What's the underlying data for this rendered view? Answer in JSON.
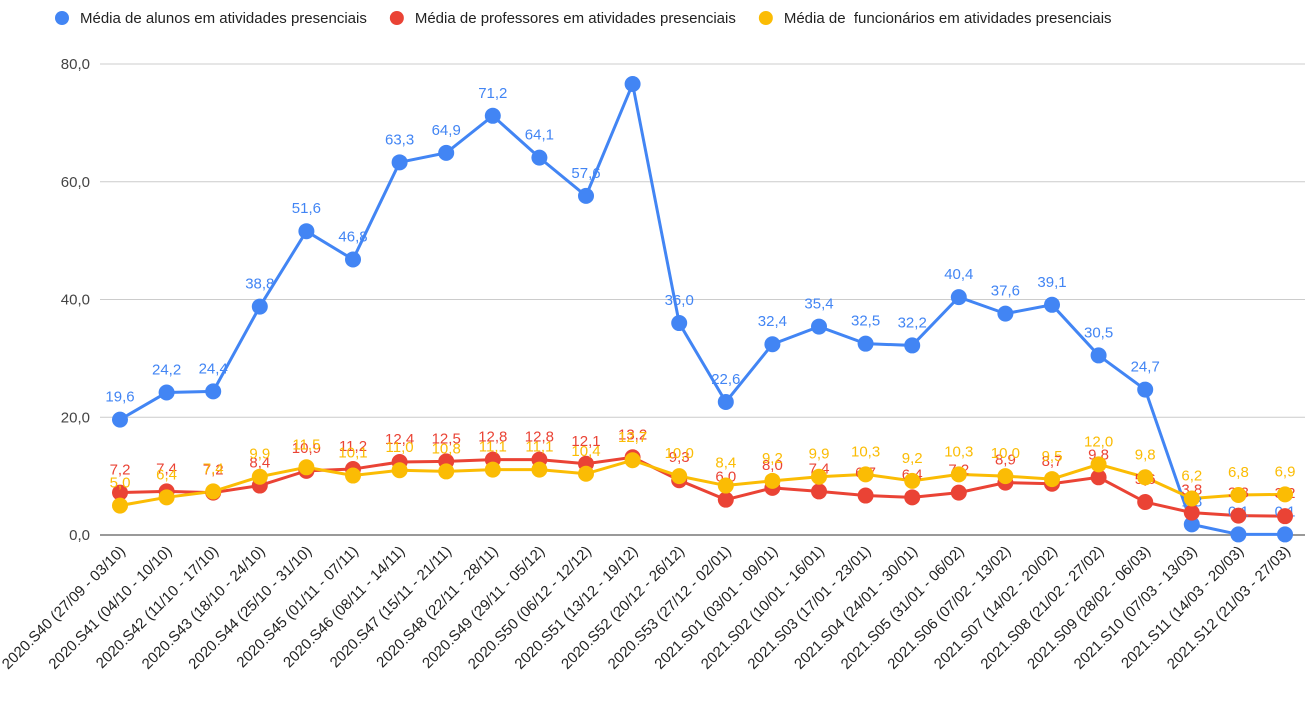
{
  "chart_data": {
    "type": "line",
    "categories": [
      "2020.S40 (27/09 - 03/10)",
      "2020.S41 (04/10 - 10/10)",
      "2020.S42 (11/10 - 17/10)",
      "2020.S43 (18/10 - 24/10)",
      "2020.S44 (25/10 - 31/10)",
      "2020.S45 (01/11 - 07/11)",
      "2020.S46 (08/11 - 14/11)",
      "2020.S47 (15/11 - 21/11)",
      "2020.S48 (22/11 - 28/11)",
      "2020.S49 (29/11 - 05/12)",
      "2020.S50 (06/12 - 12/12)",
      "2020.S51 (13/12 - 19/12)",
      "2020.S52 (20/12 - 26/12)",
      "2020.S53 (27/12 - 02/01)",
      "2021.S01 (03/01 - 09/01)",
      "2021.S02 (10/01 - 16/01)",
      "2021.S03 (17/01 - 23/01)",
      "2021.S04 (24/01 - 30/01)",
      "2021.S05 (31/01 - 06/02)",
      "2021.S06 (07/02 - 13/02)",
      "2021.S07 (14/02 - 20/02)",
      "2021.S08 (21/02 - 27/02)",
      "2021.S09 (28/02 - 06/03)",
      "2021.S10 (07/03 - 13/03)",
      "2021.S11 (14/03 - 20/03)",
      "2021.S12 (21/03 - 27/03)"
    ],
    "series": [
      {
        "name": "Média de alunos em atividades presenciais",
        "color": "#4285f4",
        "values": [
          19.6,
          24.2,
          24.4,
          38.8,
          51.6,
          46.8,
          63.3,
          64.9,
          71.2,
          64.1,
          57.6,
          76.6,
          36.0,
          22.6,
          32.4,
          35.4,
          32.5,
          32.2,
          40.4,
          37.6,
          39.1,
          30.5,
          24.7,
          1.8,
          0.1,
          0.1
        ],
        "value_labels": [
          "19,6",
          "24,2",
          "24,4",
          "38,8",
          "51,6",
          "46,8",
          "63,3",
          "64,9",
          "71,2",
          "64,1",
          "57,6",
          null,
          "36,0",
          "22,6",
          "32,4",
          "35,4",
          "32,5",
          "32,2",
          "40,4",
          "37,6",
          "39,1",
          "30,5",
          "24,7",
          "1,8",
          "0,1",
          "0,1"
        ]
      },
      {
        "name": "Média de professores em atividades presenciais",
        "color": "#ea4335",
        "values": [
          7.2,
          7.4,
          7.2,
          8.4,
          10.9,
          11.2,
          12.4,
          12.5,
          12.8,
          12.8,
          12.1,
          13.2,
          9.3,
          6.0,
          8.0,
          7.4,
          6.7,
          6.4,
          7.2,
          8.9,
          8.7,
          9.8,
          5.6,
          3.8,
          3.3,
          3.2
        ],
        "value_labels": [
          "7,2",
          "7,4",
          "7,2",
          "8,4",
          "10,9",
          "11,2",
          "12,4",
          "12,5",
          "12,8",
          "12,8",
          "12,1",
          "13,2",
          "9,3",
          "6,0",
          "8,0",
          "7,4",
          "6,7",
          "6,4",
          "7,2",
          "8,9",
          "8,7",
          "9,8",
          "5,6",
          "3,8",
          "3,3",
          "3,2"
        ]
      },
      {
        "name": "Média de  funcionários em atividades presenciais",
        "color": "#fbbc04",
        "values": [
          5.0,
          6.4,
          7.4,
          9.9,
          11.5,
          10.1,
          11.0,
          10.8,
          11.1,
          11.1,
          10.4,
          12.7,
          10.0,
          8.4,
          9.2,
          9.9,
          10.3,
          9.2,
          10.3,
          10.0,
          9.5,
          12.0,
          9.8,
          6.2,
          6.8,
          6.9
        ],
        "value_labels": [
          "5,0",
          "6,4",
          "7,4",
          "9,9",
          "11,5",
          "10,1",
          "11,0",
          "10,8",
          "11,1",
          "11,1",
          "10,4",
          "12,7",
          "10,0",
          "8,4",
          "9,2",
          "9,9",
          "10,3",
          "9,2",
          "10,3",
          "10,0",
          "9,5",
          "12,0",
          "9,8",
          "6,2",
          "6,8",
          "6,9"
        ]
      }
    ],
    "ylim": [
      0,
      80
    ],
    "yticks": [
      {
        "value": 0,
        "label": "0,0"
      },
      {
        "value": 20,
        "label": "20,0"
      },
      {
        "value": 40,
        "label": "40,0"
      },
      {
        "value": 60,
        "label": "60,0"
      },
      {
        "value": 80,
        "label": "80,0"
      }
    ],
    "grid": true,
    "legend": "top"
  }
}
